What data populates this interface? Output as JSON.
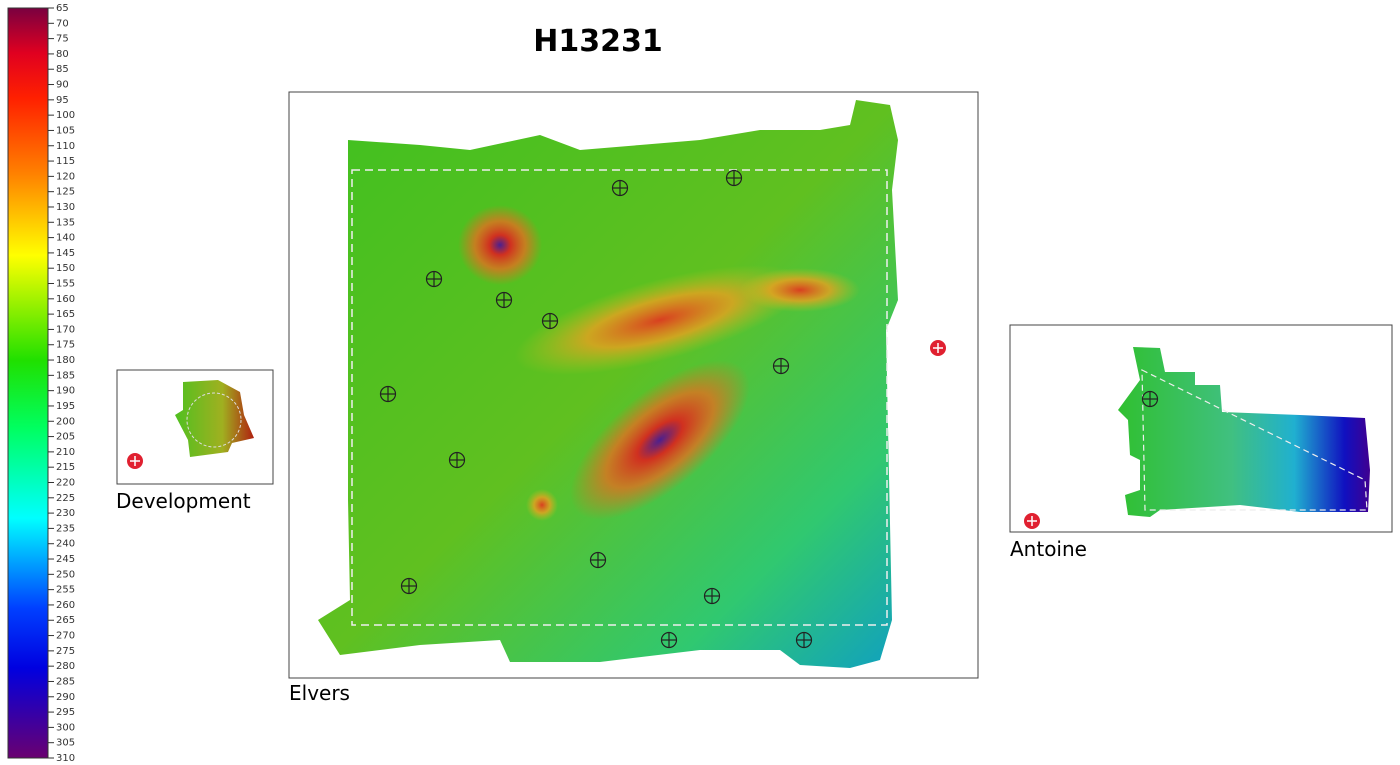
{
  "title": "H13231",
  "colorbar": {
    "ticks": [
      65,
      70,
      75,
      80,
      85,
      90,
      95,
      100,
      105,
      110,
      115,
      120,
      125,
      130,
      135,
      140,
      145,
      150,
      155,
      160,
      165,
      170,
      175,
      180,
      185,
      190,
      195,
      200,
      205,
      210,
      215,
      220,
      225,
      230,
      235,
      240,
      245,
      250,
      255,
      260,
      265,
      270,
      275,
      280,
      285,
      290,
      295,
      300,
      305,
      310
    ]
  },
  "panels": [
    {
      "label": "Development"
    },
    {
      "label": "Elvers"
    },
    {
      "label": "Antoine"
    }
  ]
}
